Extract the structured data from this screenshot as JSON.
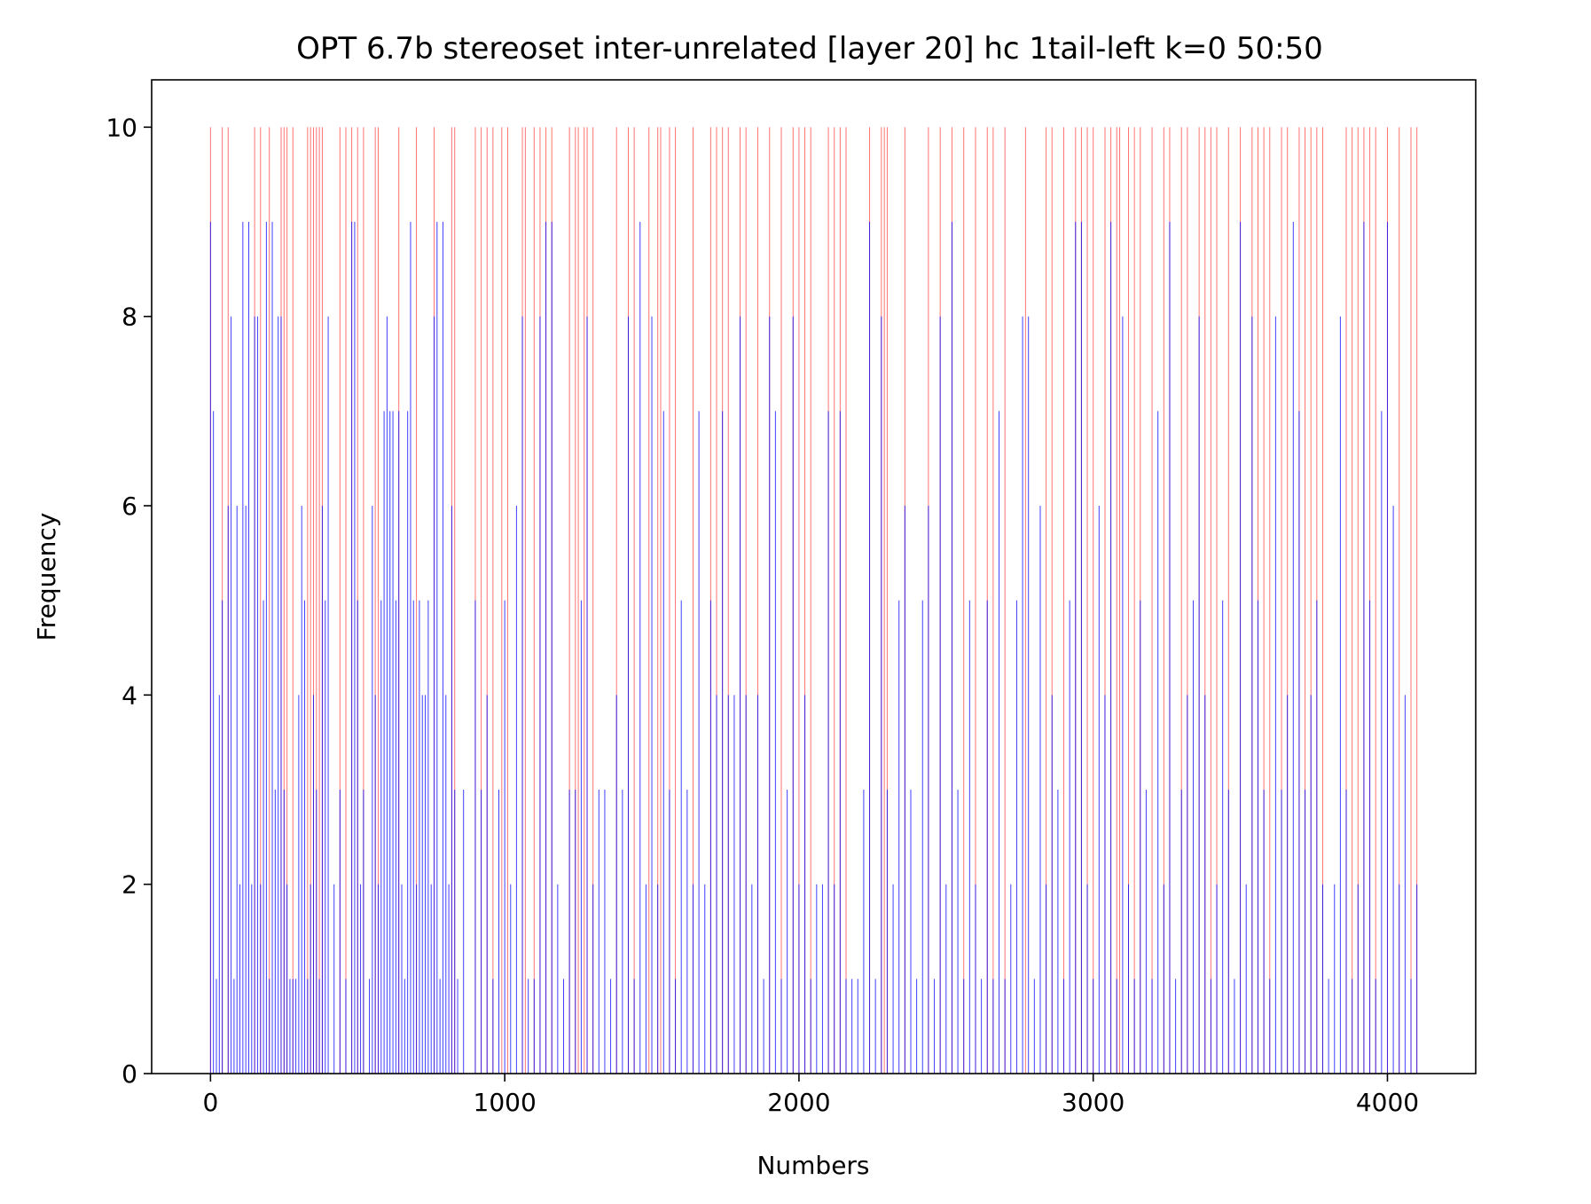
{
  "chart_data": {
    "type": "bar",
    "title": "OPT 6.7b stereoset inter-unrelated [layer 20] hc 1tail-left k=0 50:50",
    "xlabel": "Numbers",
    "ylabel": "Frequency",
    "xlim": [
      -200,
      4300
    ],
    "ylim": [
      0,
      10.5
    ],
    "xticks": [
      0,
      1000,
      2000,
      3000,
      4000
    ],
    "yticks": [
      0,
      2,
      4,
      6,
      8,
      10
    ],
    "grid": false,
    "legend": "none",
    "series": [
      {
        "color": "#ff0000",
        "opacity": 0.55,
        "x": [
          0,
          40,
          60,
          150,
          170,
          200,
          240,
          250,
          260,
          280,
          330,
          340,
          350,
          360,
          370,
          380,
          440,
          460,
          480,
          500,
          520,
          560,
          570,
          640,
          700,
          760,
          820,
          830,
          900,
          920,
          940,
          960,
          990,
          1010,
          1060,
          1070,
          1100,
          1120,
          1140,
          1160,
          1220,
          1240,
          1250,
          1270,
          1280,
          1300,
          1380,
          1420,
          1440,
          1490,
          1520,
          1530,
          1560,
          1580,
          1640,
          1700,
          1720,
          1740,
          1760,
          1800,
          1820,
          1860,
          1900,
          1940,
          1980,
          2000,
          2020,
          2040,
          2100,
          2120,
          2140,
          2160,
          2240,
          2280,
          2290,
          2300,
          2360,
          2440,
          2480,
          2520,
          2560,
          2600,
          2640,
          2660,
          2700,
          2770,
          2840,
          2860,
          2900,
          2940,
          2960,
          2980,
          3000,
          3040,
          3060,
          3080,
          3090,
          3120,
          3140,
          3160,
          3200,
          3240,
          3260,
          3300,
          3320,
          3360,
          3380,
          3400,
          3420,
          3460,
          3500,
          3540,
          3560,
          3580,
          3600,
          3640,
          3660,
          3700,
          3720,
          3740,
          3760,
          3780,
          3860,
          3880,
          3900,
          3920,
          3940,
          3960,
          4000,
          4040,
          4080,
          4100
        ],
        "values": [
          10,
          10,
          10,
          10,
          10,
          10,
          10,
          10,
          10,
          10,
          10,
          10,
          10,
          10,
          10,
          10,
          10,
          10,
          10,
          10,
          10,
          10,
          10,
          10,
          10,
          10,
          10,
          10,
          10,
          10,
          10,
          10,
          10,
          10,
          10,
          10,
          10,
          10,
          10,
          10,
          10,
          10,
          10,
          10,
          10,
          10,
          10,
          10,
          10,
          10,
          10,
          10,
          10,
          10,
          10,
          10,
          10,
          10,
          10,
          10,
          10,
          10,
          10,
          10,
          10,
          10,
          10,
          10,
          10,
          10,
          10,
          10,
          10,
          10,
          10,
          10,
          10,
          10,
          10,
          10,
          10,
          10,
          10,
          10,
          10,
          10,
          10,
          10,
          10,
          10,
          10,
          10,
          10,
          10,
          10,
          10,
          10,
          10,
          10,
          10,
          10,
          10,
          10,
          10,
          10,
          10,
          10,
          10,
          10,
          10,
          10,
          10,
          10,
          10,
          10,
          10,
          10,
          10,
          10,
          10,
          10,
          10,
          10,
          10,
          10,
          10,
          10,
          10,
          10,
          10,
          10,
          10
        ]
      },
      {
        "color": "#0000ff",
        "opacity": 0.75,
        "x": [
          0,
          10,
          20,
          30,
          40,
          60,
          70,
          80,
          90,
          100,
          110,
          120,
          130,
          140,
          150,
          160,
          170,
          180,
          190,
          200,
          210,
          220,
          230,
          240,
          250,
          260,
          270,
          280,
          290,
          300,
          310,
          320,
          330,
          340,
          350,
          360,
          370,
          380,
          390,
          400,
          420,
          440,
          460,
          480,
          490,
          500,
          510,
          520,
          540,
          550,
          560,
          570,
          580,
          590,
          600,
          610,
          620,
          630,
          640,
          650,
          660,
          670,
          680,
          690,
          700,
          710,
          720,
          730,
          740,
          750,
          760,
          770,
          780,
          790,
          800,
          810,
          820,
          830,
          840,
          860,
          900,
          920,
          940,
          960,
          980,
          1000,
          1020,
          1040,
          1060,
          1080,
          1100,
          1120,
          1140,
          1160,
          1180,
          1200,
          1220,
          1240,
          1260,
          1280,
          1300,
          1320,
          1340,
          1360,
          1380,
          1400,
          1420,
          1440,
          1460,
          1480,
          1500,
          1520,
          1540,
          1560,
          1580,
          1600,
          1620,
          1640,
          1660,
          1680,
          1700,
          1720,
          1740,
          1760,
          1780,
          1800,
          1820,
          1840,
          1860,
          1880,
          1900,
          1920,
          1940,
          1960,
          1980,
          2000,
          2020,
          2040,
          2060,
          2080,
          2100,
          2120,
          2140,
          2160,
          2180,
          2200,
          2220,
          2240,
          2260,
          2280,
          2300,
          2320,
          2340,
          2360,
          2380,
          2400,
          2420,
          2440,
          2460,
          2480,
          2500,
          2520,
          2540,
          2560,
          2580,
          2600,
          2620,
          2640,
          2660,
          2680,
          2700,
          2720,
          2740,
          2760,
          2780,
          2800,
          2820,
          2840,
          2860,
          2880,
          2900,
          2920,
          2940,
          2960,
          2980,
          3000,
          3020,
          3040,
          3060,
          3080,
          3100,
          3120,
          3140,
          3160,
          3180,
          3200,
          3220,
          3240,
          3260,
          3280,
          3300,
          3320,
          3340,
          3360,
          3380,
          3400,
          3420,
          3440,
          3460,
          3480,
          3500,
          3520,
          3540,
          3560,
          3580,
          3600,
          3620,
          3640,
          3660,
          3680,
          3700,
          3720,
          3740,
          3760,
          3780,
          3800,
          3820,
          3840,
          3860,
          3880,
          3900,
          3920,
          3940,
          3960,
          3980,
          4000,
          4020,
          4040,
          4060,
          4080,
          4100
        ],
        "values": [
          9,
          7,
          1,
          4,
          5,
          6,
          8,
          1,
          6,
          2,
          9,
          6,
          9,
          2,
          8,
          8,
          2,
          5,
          9,
          1,
          9,
          3,
          8,
          8,
          3,
          2,
          1,
          1,
          1,
          4,
          6,
          5,
          1,
          2,
          4,
          3,
          1,
          6,
          5,
          8,
          2,
          3,
          1,
          9,
          9,
          5,
          2,
          3,
          1,
          6,
          4,
          2,
          5,
          7,
          8,
          7,
          7,
          5,
          7,
          2,
          1,
          7,
          9,
          5,
          2,
          5,
          4,
          4,
          5,
          2,
          8,
          9,
          1,
          9,
          4,
          2,
          6,
          3,
          1,
          3,
          5,
          3,
          4,
          1,
          3,
          5,
          2,
          6,
          8,
          1,
          1,
          8,
          9,
          9,
          2,
          1,
          3,
          3,
          5,
          8,
          2,
          3,
          3,
          1,
          4,
          3,
          8,
          1,
          9,
          2,
          8,
          2,
          7,
          3,
          1,
          5,
          3,
          2,
          7,
          2,
          5,
          4,
          7,
          4,
          4,
          8,
          4,
          2,
          4,
          1,
          8,
          7,
          1,
          3,
          8,
          2,
          4,
          1,
          2,
          2,
          7,
          2,
          7,
          1,
          1,
          1,
          3,
          9,
          1,
          8,
          3,
          2,
          5,
          6,
          3,
          1,
          5,
          6,
          1,
          8,
          2,
          9,
          3,
          1,
          5,
          2,
          1,
          5,
          1,
          7,
          1,
          2,
          5,
          8,
          8,
          1,
          6,
          2,
          4,
          3,
          1,
          5,
          9,
          9,
          2,
          1,
          6,
          4,
          9,
          1,
          8,
          2,
          1,
          5,
          3,
          1,
          7,
          2,
          9,
          1,
          3,
          4,
          5,
          8,
          4,
          1,
          2,
          5,
          3,
          1,
          9,
          2,
          8,
          5,
          3,
          1,
          8,
          3,
          4,
          9,
          7,
          3,
          4,
          5,
          2,
          1,
          2,
          8,
          3,
          1,
          2,
          9,
          5,
          1,
          7,
          9,
          6,
          2,
          4,
          1,
          2
        ]
      }
    ]
  }
}
